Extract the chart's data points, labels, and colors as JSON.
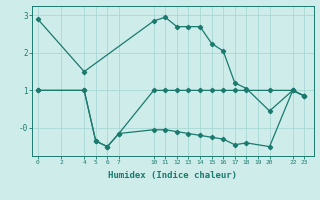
{
  "title": "",
  "xlabel": "Humidex (Indice chaleur)",
  "bg_color": "#ceecea",
  "line_color": "#1a7a6e",
  "grid_color": "#a8d8d4",
  "series1_x": [
    0,
    4,
    10,
    11,
    12,
    13,
    14,
    15,
    16,
    17,
    18,
    20,
    22,
    23
  ],
  "series1_y": [
    2.9,
    1.5,
    2.85,
    2.95,
    2.7,
    2.7,
    2.7,
    2.25,
    2.05,
    1.2,
    1.05,
    0.45,
    1.0,
    0.85
  ],
  "series2_x": [
    0,
    4,
    5,
    6,
    7,
    10,
    11,
    12,
    13,
    14,
    15,
    16,
    17,
    18,
    20,
    22,
    23
  ],
  "series2_y": [
    1.0,
    1.0,
    -0.35,
    -0.5,
    -0.15,
    1.0,
    1.0,
    1.0,
    1.0,
    1.0,
    1.0,
    1.0,
    1.0,
    1.0,
    1.0,
    1.0,
    0.85
  ],
  "series3_x": [
    0,
    4,
    5,
    6,
    7,
    10,
    11,
    12,
    13,
    14,
    15,
    16,
    17,
    18,
    20,
    22,
    23
  ],
  "series3_y": [
    1.0,
    1.0,
    -0.35,
    -0.5,
    -0.15,
    -0.05,
    -0.05,
    -0.1,
    -0.15,
    -0.2,
    -0.25,
    -0.3,
    -0.45,
    -0.4,
    -0.5,
    1.0,
    0.85
  ],
  "xticks": [
    0,
    2,
    4,
    5,
    6,
    7,
    10,
    11,
    12,
    13,
    14,
    15,
    16,
    17,
    18,
    19,
    20,
    22,
    23
  ],
  "yticks": [
    0,
    1,
    2,
    3
  ],
  "ylim": [
    -0.75,
    3.25
  ],
  "xlim": [
    -0.5,
    23.8
  ]
}
